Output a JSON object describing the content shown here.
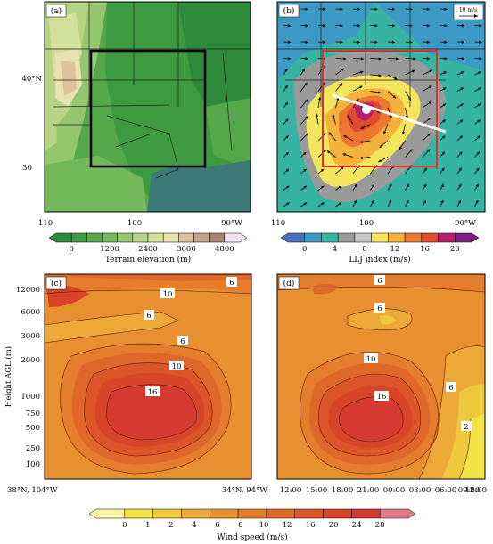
{
  "panels": {
    "a": {
      "label": "(a)",
      "x_ticks": [
        "110",
        "100",
        "90°W"
      ],
      "y_ticks": [
        "40°N",
        "30"
      ]
    },
    "b": {
      "label": "(b)",
      "x_ticks": [
        "110",
        "100",
        "90°W"
      ],
      "wind_scale_label": "10 m/s"
    },
    "c": {
      "label": "(c)",
      "x_ticks": [
        "38°N, 104°W",
        "34°N, 94°W"
      ],
      "ylabel": "Height AGL (m)",
      "y_ticks": [
        "12000",
        "6000",
        "3000",
        "2000",
        "1000",
        "750",
        "500",
        "250",
        "100"
      ]
    },
    "d": {
      "label": "(d)",
      "x_ticks": [
        "12:00",
        "15:00",
        "18:00",
        "21:00",
        "00:00",
        "03:00",
        "06:00",
        "09:00",
        "12:00"
      ]
    }
  },
  "colorbars": {
    "terrain": {
      "label": "Terrain elevation (m)",
      "ticks": [
        "0",
        "1200",
        "2400",
        "3600",
        "4800"
      ],
      "colors": [
        "#2d8a3a",
        "#3d9a40",
        "#55a84a",
        "#72b85a",
        "#93c66e",
        "#b5d485",
        "#d3e09c",
        "#e8e2b0",
        "#dcc39e",
        "#c4a18a",
        "#a88372",
        "#f4e1ec"
      ]
    },
    "llj": {
      "label": "LLJ index (m/s)",
      "ticks": [
        "0",
        "4",
        "8",
        "12",
        "16",
        "20"
      ],
      "colors": [
        "#4c6fb5",
        "#3c99c4",
        "#37b3a2",
        "#9a9a9a",
        "#c8c8c8",
        "#f3e55e",
        "#f3b23c",
        "#ec7830",
        "#e04a2e",
        "#b6206b",
        "#7a2280"
      ]
    },
    "wind": {
      "label": "Wind speed (m/s)",
      "ticks": [
        "0",
        "1",
        "2",
        "4",
        "6",
        "8",
        "10",
        "12",
        "16",
        "20",
        "24",
        "28"
      ],
      "colors": [
        "#f8f5a8",
        "#f2e246",
        "#efc93c",
        "#eca937",
        "#e8902f",
        "#e47d2c",
        "#e0672a",
        "#dc5528",
        "#d84427",
        "#d43a2f",
        "#e07a8a"
      ]
    }
  },
  "contour_labels": {
    "c": [
      "6",
      "10",
      "6",
      "6",
      "10",
      "16"
    ],
    "d": [
      "6",
      "6",
      "10",
      "16",
      "6",
      "2"
    ]
  },
  "chart_data": [
    {
      "type": "heatmap",
      "panel": "a",
      "title": "",
      "colorbar": "Terrain elevation (m)",
      "x_range": [
        110,
        88
      ],
      "y_range": [
        24,
        48
      ],
      "region_box_lon": [
        105,
        92
      ],
      "region_box_lat": [
        30,
        43
      ]
    },
    {
      "type": "heatmap",
      "panel": "b",
      "title": "",
      "colorbar": "LLJ index (m/s)",
      "x_range": [
        110,
        88
      ],
      "region_box_lon": [
        105,
        92
      ],
      "region_box_lat": [
        30,
        43
      ],
      "cross_section": {
        "start": "38°N, 104°W",
        "end": "34°N, 94°W"
      },
      "vector_reference": "10 m/s"
    },
    {
      "type": "heatmap",
      "panel": "c",
      "title": "",
      "ylabel": "Height AGL (m)",
      "y_scale": "log",
      "y_ticks": [
        100,
        250,
        500,
        750,
        1000,
        2000,
        3000,
        6000,
        12000
      ],
      "colorbar": "Wind speed (m/s)",
      "contour_levels": [
        6,
        10,
        16
      ],
      "max_speed": 16
    },
    {
      "type": "heatmap",
      "panel": "d",
      "title": "",
      "y_scale": "log",
      "x_ticks": [
        "12:00",
        "15:00",
        "18:00",
        "21:00",
        "00:00",
        "03:00",
        "06:00",
        "09:00",
        "12:00"
      ],
      "contour_levels": [
        2,
        6,
        10,
        16
      ],
      "max_speed": 16
    }
  ]
}
